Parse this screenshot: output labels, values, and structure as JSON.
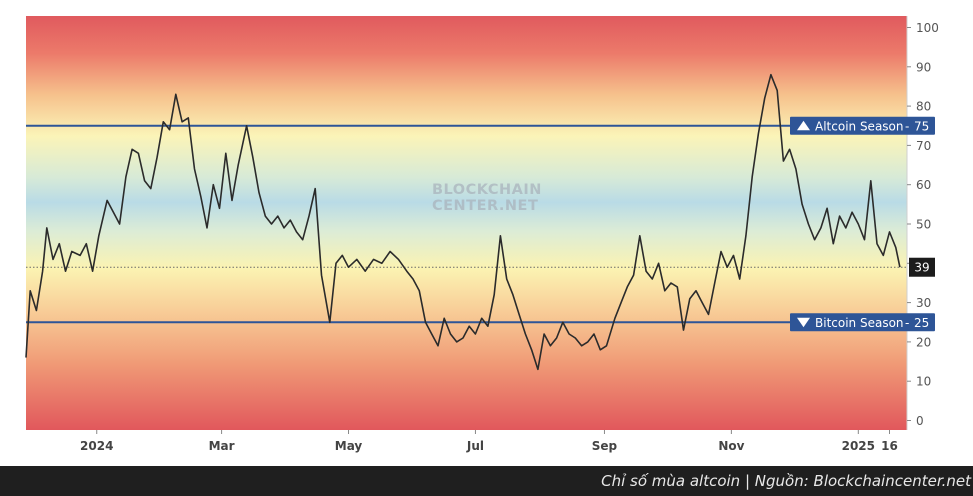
{
  "caption": "Chỉ số mùa altcoin | Nguồn: Blockchaincenter.net",
  "watermark": {
    "line1": "BLOCKCHAIN",
    "line2": "CENTER.NET"
  },
  "chart_data": {
    "type": "line",
    "ylim": [
      0,
      100
    ],
    "y_ticks": [
      0,
      10,
      20,
      30,
      40,
      50,
      60,
      70,
      80,
      90,
      100
    ],
    "x_range": [
      "2023-11-28",
      "2025-01-22"
    ],
    "x_ticks": [
      {
        "label": "2024",
        "date": "2024-01-01"
      },
      {
        "label": "Mar",
        "date": "2024-03-01"
      },
      {
        "label": "May",
        "date": "2024-05-01"
      },
      {
        "label": "Jul",
        "date": "2024-07-01"
      },
      {
        "label": "Sep",
        "date": "2024-09-01"
      },
      {
        "label": "Nov",
        "date": "2024-11-01"
      },
      {
        "label": "2025",
        "date": "2025-01-01"
      },
      {
        "label": "16",
        "date": "2025-01-16"
      }
    ],
    "grid": false,
    "background": "red-yellow-blue-yellow-red vertical gradient",
    "reference_lines": [
      {
        "label": "Altcoin Season",
        "value": 75,
        "color": "#2e5597",
        "marker": "up-triangle"
      },
      {
        "label": "Bitcoin Season",
        "value": 25,
        "color": "#2e5597",
        "marker": "down-triangle"
      }
    ],
    "current_value": {
      "value": 39,
      "label": "39"
    },
    "series": [
      {
        "color": "#2b2b2b",
        "points": [
          [
            "2023-11-28",
            16
          ],
          [
            "2023-11-30",
            33
          ],
          [
            "2023-12-03",
            28
          ],
          [
            "2023-12-06",
            38
          ],
          [
            "2023-12-08",
            49
          ],
          [
            "2023-12-11",
            41
          ],
          [
            "2023-12-14",
            45
          ],
          [
            "2023-12-17",
            38
          ],
          [
            "2023-12-20",
            43
          ],
          [
            "2023-12-24",
            42
          ],
          [
            "2023-12-27",
            45
          ],
          [
            "2023-12-30",
            38
          ],
          [
            "2024-01-02",
            47
          ],
          [
            "2024-01-06",
            56
          ],
          [
            "2024-01-09",
            53
          ],
          [
            "2024-01-12",
            50
          ],
          [
            "2024-01-15",
            62
          ],
          [
            "2024-01-18",
            69
          ],
          [
            "2024-01-21",
            68
          ],
          [
            "2024-01-24",
            61
          ],
          [
            "2024-01-27",
            59
          ],
          [
            "2024-01-30",
            67
          ],
          [
            "2024-02-02",
            76
          ],
          [
            "2024-02-05",
            74
          ],
          [
            "2024-02-08",
            83
          ],
          [
            "2024-02-11",
            76
          ],
          [
            "2024-02-14",
            77
          ],
          [
            "2024-02-17",
            64
          ],
          [
            "2024-02-20",
            57
          ],
          [
            "2024-02-23",
            49
          ],
          [
            "2024-02-26",
            60
          ],
          [
            "2024-02-29",
            54
          ],
          [
            "2024-03-03",
            68
          ],
          [
            "2024-03-06",
            56
          ],
          [
            "2024-03-09",
            65
          ],
          [
            "2024-03-13",
            75
          ],
          [
            "2024-03-16",
            67
          ],
          [
            "2024-03-19",
            58
          ],
          [
            "2024-03-22",
            52
          ],
          [
            "2024-03-25",
            50
          ],
          [
            "2024-03-28",
            52
          ],
          [
            "2024-03-31",
            49
          ],
          [
            "2024-04-03",
            51
          ],
          [
            "2024-04-06",
            48
          ],
          [
            "2024-04-09",
            46
          ],
          [
            "2024-04-12",
            52
          ],
          [
            "2024-04-15",
            59
          ],
          [
            "2024-04-18",
            37
          ],
          [
            "2024-04-22",
            25
          ],
          [
            "2024-04-25",
            40
          ],
          [
            "2024-04-28",
            42
          ],
          [
            "2024-05-01",
            39
          ],
          [
            "2024-05-05",
            41
          ],
          [
            "2024-05-09",
            38
          ],
          [
            "2024-05-13",
            41
          ],
          [
            "2024-05-17",
            40
          ],
          [
            "2024-05-21",
            43
          ],
          [
            "2024-05-25",
            41
          ],
          [
            "2024-05-29",
            38
          ],
          [
            "2024-06-01",
            36
          ],
          [
            "2024-06-04",
            33
          ],
          [
            "2024-06-07",
            25
          ],
          [
            "2024-06-10",
            22
          ],
          [
            "2024-06-13",
            19
          ],
          [
            "2024-06-16",
            26
          ],
          [
            "2024-06-19",
            22
          ],
          [
            "2024-06-22",
            20
          ],
          [
            "2024-06-25",
            21
          ],
          [
            "2024-06-28",
            24
          ],
          [
            "2024-07-01",
            22
          ],
          [
            "2024-07-04",
            26
          ],
          [
            "2024-07-07",
            24
          ],
          [
            "2024-07-10",
            32
          ],
          [
            "2024-07-13",
            47
          ],
          [
            "2024-07-16",
            36
          ],
          [
            "2024-07-19",
            32
          ],
          [
            "2024-07-22",
            27
          ],
          [
            "2024-07-25",
            22
          ],
          [
            "2024-07-28",
            18
          ],
          [
            "2024-07-31",
            13
          ],
          [
            "2024-08-03",
            22
          ],
          [
            "2024-08-06",
            19
          ],
          [
            "2024-08-09",
            21
          ],
          [
            "2024-08-12",
            25
          ],
          [
            "2024-08-15",
            22
          ],
          [
            "2024-08-18",
            21
          ],
          [
            "2024-08-21",
            19
          ],
          [
            "2024-08-24",
            20
          ],
          [
            "2024-08-27",
            22
          ],
          [
            "2024-08-30",
            18
          ],
          [
            "2024-09-02",
            19
          ],
          [
            "2024-09-06",
            26
          ],
          [
            "2024-09-09",
            30
          ],
          [
            "2024-09-12",
            34
          ],
          [
            "2024-09-15",
            37
          ],
          [
            "2024-09-18",
            47
          ],
          [
            "2024-09-21",
            38
          ],
          [
            "2024-09-24",
            36
          ],
          [
            "2024-09-27",
            40
          ],
          [
            "2024-09-30",
            33
          ],
          [
            "2024-10-03",
            35
          ],
          [
            "2024-10-06",
            34
          ],
          [
            "2024-10-09",
            23
          ],
          [
            "2024-10-12",
            31
          ],
          [
            "2024-10-15",
            33
          ],
          [
            "2024-10-18",
            30
          ],
          [
            "2024-10-21",
            27
          ],
          [
            "2024-10-24",
            35
          ],
          [
            "2024-10-27",
            43
          ],
          [
            "2024-10-30",
            39
          ],
          [
            "2024-11-02",
            42
          ],
          [
            "2024-11-05",
            36
          ],
          [
            "2024-11-08",
            47
          ],
          [
            "2024-11-11",
            62
          ],
          [
            "2024-11-14",
            73
          ],
          [
            "2024-11-17",
            82
          ],
          [
            "2024-11-20",
            88
          ],
          [
            "2024-11-23",
            84
          ],
          [
            "2024-11-26",
            66
          ],
          [
            "2024-11-29",
            69
          ],
          [
            "2024-12-02",
            64
          ],
          [
            "2024-12-05",
            55
          ],
          [
            "2024-12-08",
            50
          ],
          [
            "2024-12-11",
            46
          ],
          [
            "2024-12-14",
            49
          ],
          [
            "2024-12-17",
            54
          ],
          [
            "2024-12-20",
            45
          ],
          [
            "2024-12-23",
            52
          ],
          [
            "2024-12-26",
            49
          ],
          [
            "2024-12-29",
            53
          ],
          [
            "2025-01-01",
            50
          ],
          [
            "2025-01-04",
            46
          ],
          [
            "2025-01-07",
            61
          ],
          [
            "2025-01-10",
            45
          ],
          [
            "2025-01-13",
            42
          ],
          [
            "2025-01-16",
            48
          ],
          [
            "2025-01-19",
            44
          ],
          [
            "2025-01-21",
            39
          ]
        ]
      }
    ]
  }
}
